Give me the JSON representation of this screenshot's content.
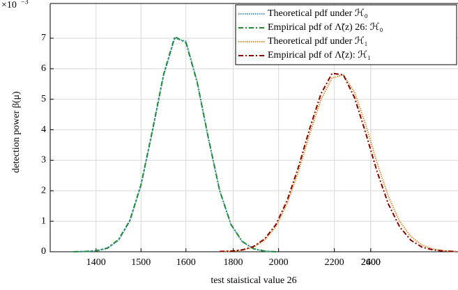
{
  "chart_data": {
    "type": "line",
    "xlabel": "test staistical value 26",
    "ylabel": "detection power β(μ)",
    "y_exponent_base": "×10",
    "y_exponent_power": "−3",
    "xlim": [
      1298,
      2205
    ],
    "ylim": [
      0,
      8.14
    ],
    "xticks": [
      1400,
      1500,
      1600,
      {
        "value": 1705,
        "label": "1800"
      },
      {
        "value": 1806,
        "label": "2000"
      },
      {
        "value": 1930,
        "label": "2200"
      },
      {
        "value": 2011,
        "label": "2400"
      },
      {
        "value": 2011,
        "label": "2600"
      }
    ],
    "yticks": [
      0,
      1,
      2,
      3,
      4,
      5,
      6,
      7
    ],
    "grid": true,
    "legend": "top-right",
    "series": [
      {
        "name": "Theoretical pdf under ℋ₀",
        "color": "#3a8fd0",
        "dash": "dotted",
        "x": [
          1350,
          1375,
          1400,
          1425,
          1450,
          1475,
          1500,
          1525,
          1550,
          1575,
          1600,
          1625,
          1650,
          1675,
          1700,
          1725,
          1750,
          1775,
          1800
        ],
        "values": [
          0.0,
          0.01,
          0.03,
          0.11,
          0.37,
          1.0,
          2.18,
          3.92,
          5.77,
          7.0,
          6.9,
          5.57,
          3.7,
          2.01,
          0.89,
          0.33,
          0.1,
          0.02,
          0.0
        ]
      },
      {
        "name": "Empirical pdf of Λ̃(z) 26: ℋ₀",
        "color": "#1e8a2e",
        "dash": "dashdot",
        "x": [
          1350,
          1375,
          1400,
          1425,
          1450,
          1475,
          1500,
          1525,
          1550,
          1575,
          1600,
          1625,
          1650,
          1675,
          1700,
          1725,
          1750,
          1775,
          1800
        ],
        "values": [
          0.0,
          0.01,
          0.03,
          0.12,
          0.4,
          1.02,
          2.2,
          3.95,
          5.8,
          7.05,
          6.85,
          5.55,
          3.72,
          2.0,
          0.9,
          0.34,
          0.1,
          0.02,
          0.0
        ]
      },
      {
        "name": "Theoretical pdf under ℋ₁",
        "color": "#e08a1e",
        "dash": "dotted",
        "x": [
          1675,
          1700,
          1725,
          1750,
          1775,
          1800,
          1825,
          1850,
          1875,
          1900,
          1925,
          1950,
          1975,
          2000,
          2025,
          2050,
          2075,
          2100,
          2125,
          2150,
          2175,
          2200
        ],
        "values": [
          0.01,
          0.02,
          0.05,
          0.15,
          0.38,
          0.82,
          1.58,
          2.62,
          3.85,
          4.98,
          5.7,
          5.8,
          5.22,
          4.15,
          2.92,
          1.82,
          1.0,
          0.5,
          0.22,
          0.09,
          0.03,
          0.01
        ]
      },
      {
        "name": "Empirical pdf of Λ̃(z): ℋ₁",
        "color": "#8b0000",
        "dash": "dashdot",
        "x": [
          1675,
          1700,
          1725,
          1750,
          1775,
          1800,
          1825,
          1850,
          1875,
          1900,
          1925,
          1950,
          1975,
          2000,
          2025,
          2050,
          2075,
          2100,
          2125,
          2150,
          2175,
          2200
        ],
        "values": [
          0.01,
          0.02,
          0.06,
          0.17,
          0.42,
          0.89,
          1.68,
          2.77,
          4.03,
          5.17,
          5.85,
          5.8,
          5.05,
          3.88,
          2.63,
          1.57,
          0.82,
          0.38,
          0.15,
          0.06,
          0.02,
          0.01
        ]
      }
    ]
  }
}
